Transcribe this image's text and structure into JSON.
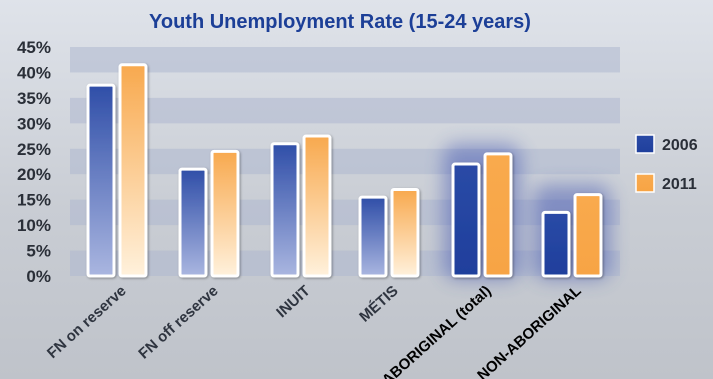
{
  "chart_data": {
    "type": "bar",
    "title": "Youth Unemployment Rate (15-24 years)",
    "categories": [
      "FN on reserve",
      "FN off reserve",
      "INUIT",
      "MÉTIS",
      "ABORIGINAL (total)",
      "NON-ABORIGINAL"
    ],
    "series": [
      {
        "name": "2006",
        "values": [
          37.5,
          21,
          26,
          15.5,
          22,
          12.5
        ]
      },
      {
        "name": "2011",
        "values": [
          41.5,
          24.5,
          27.5,
          17,
          24,
          16
        ]
      }
    ],
    "ylim": [
      0,
      45
    ],
    "yticks": [
      "0%",
      "5%",
      "10%",
      "15%",
      "20%",
      "25%",
      "30%",
      "35%",
      "40%",
      "45%"
    ],
    "xlabel": "",
    "ylabel": "",
    "legend_position": "right",
    "grid": true,
    "emphasized_categories": [
      "ABORIGINAL (total)",
      "NON-ABORIGINAL"
    ],
    "colors": {
      "series_2006": "#2f4ea8",
      "series_2006_light": "#aab6e0",
      "series_2011": "#f8a94e",
      "series_2011_light": "#fff1dc",
      "title": "#1c3f97",
      "grid_band": "#aeb8cf"
    }
  }
}
